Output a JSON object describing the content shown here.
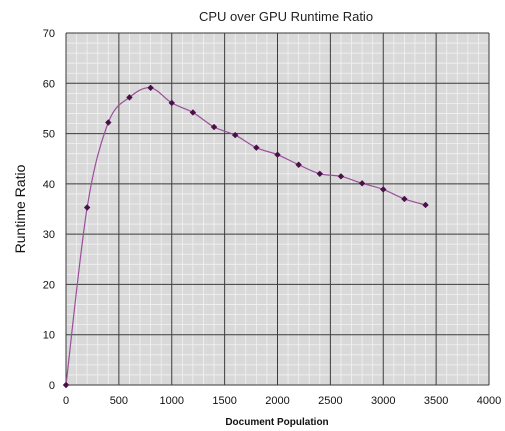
{
  "chart_data": {
    "type": "line",
    "title": "CPU over GPU Runtime Ratio",
    "xlabel": "Document Population",
    "ylabel": "Runtime Ratio",
    "xlim": [
      0,
      4000
    ],
    "ylim": [
      0,
      70
    ],
    "x_ticks": [
      0,
      500,
      1000,
      1500,
      2000,
      2500,
      3000,
      3500,
      4000
    ],
    "y_ticks": [
      0,
      10,
      20,
      30,
      40,
      50,
      60,
      70
    ],
    "grid": true,
    "minor_grid": true,
    "legend": "none",
    "series": [
      {
        "x": [
          0,
          200,
          400,
          600,
          800,
          1000,
          1200,
          1400,
          1600,
          1800,
          2000,
          2200,
          2400,
          2600,
          2800,
          3000,
          3200,
          3400
        ],
        "y": [
          0,
          35.3,
          52.2,
          57.2,
          59.1,
          56.1,
          54.2,
          51.3,
          49.7,
          47.2,
          45.8,
          43.8,
          42.0,
          41.5,
          40.1,
          38.9,
          37.0,
          35.8
        ]
      }
    ],
    "colors": {
      "line": "#9b4f9b",
      "marker": "#4a1048",
      "plot_background": "#d9d9d9",
      "major_grid": "#3a3a3a",
      "minor_grid": "#f2f2f2"
    }
  }
}
